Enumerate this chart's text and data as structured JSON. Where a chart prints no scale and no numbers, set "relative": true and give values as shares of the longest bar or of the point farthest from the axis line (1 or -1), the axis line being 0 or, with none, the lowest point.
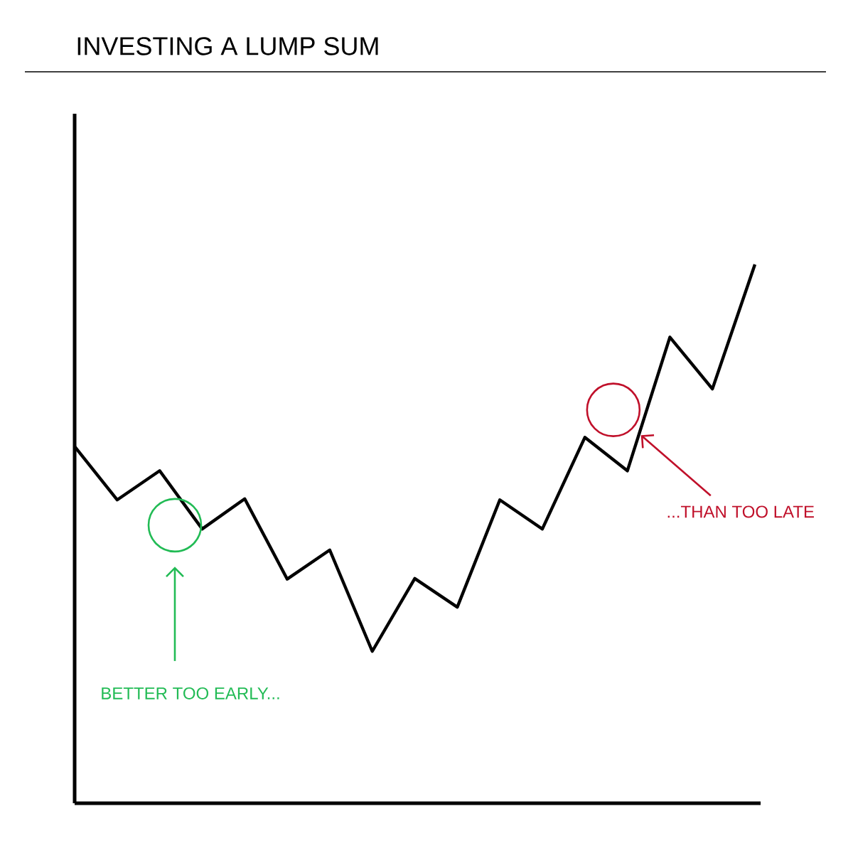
{
  "chart_data": {
    "type": "line",
    "title": "INVESTING A LUMP SUM",
    "relative": true,
    "categories": [
      null,
      null,
      null,
      null,
      null,
      null,
      null,
      null,
      null,
      null,
      null,
      null,
      null,
      null,
      null,
      null,
      null
    ],
    "series": [
      {
        "color": "#000000",
        "values": [
          0.662,
          0.563,
          0.617,
          0.509,
          0.565,
          0.416,
          0.47,
          0.282,
          0.417,
          0.364,
          0.563,
          0.509,
          0.679,
          0.617,
          0.865,
          0.769,
          1
        ]
      }
    ],
    "annotations": [
      "BETTER TOO EARLY...",
      "...THAN TOO LATE"
    ],
    "marker": "none",
    "line_style": "solid"
  }
}
